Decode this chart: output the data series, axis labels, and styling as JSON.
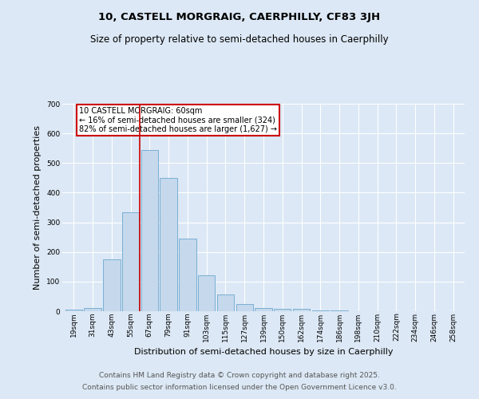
{
  "title": "10, CASTELL MORGRAIG, CAERPHILLY, CF83 3JH",
  "subtitle": "Size of property relative to semi-detached houses in Caerphilly",
  "xlabel": "Distribution of semi-detached houses by size in Caerphilly",
  "ylabel": "Number of semi-detached properties",
  "categories": [
    "19sqm",
    "31sqm",
    "43sqm",
    "55sqm",
    "67sqm",
    "79sqm",
    "91sqm",
    "103sqm",
    "115sqm",
    "127sqm",
    "139sqm",
    "150sqm",
    "162sqm",
    "174sqm",
    "186sqm",
    "198sqm",
    "210sqm",
    "222sqm",
    "234sqm",
    "246sqm",
    "258sqm"
  ],
  "values": [
    5,
    12,
    175,
    335,
    545,
    450,
    245,
    120,
    57,
    25,
    10,
    8,
    7,
    3,
    2,
    1,
    0,
    0,
    0,
    0,
    0
  ],
  "bar_color": "#c5d8ec",
  "bar_edge_color": "#7aafd4",
  "property_line_x": 3.5,
  "annotation_text": "10 CASTELL MORGRAIG: 60sqm\n← 16% of semi-detached houses are smaller (324)\n82% of semi-detached houses are larger (1,627) →",
  "annotation_box_color": "#ffffff",
  "annotation_box_edge": "#cc0000",
  "vline_color": "#cc0000",
  "ylim": [
    0,
    700
  ],
  "yticks": [
    0,
    100,
    200,
    300,
    400,
    500,
    600,
    700
  ],
  "background_color": "#dce8f5",
  "grid_color": "#ffffff",
  "footer1": "Contains HM Land Registry data © Crown copyright and database right 2025.",
  "footer2": "Contains public sector information licensed under the Open Government Licence v3.0.",
  "title_fontsize": 9.5,
  "subtitle_fontsize": 8.5,
  "axis_label_fontsize": 8,
  "tick_fontsize": 6.5,
  "footer_fontsize": 6.5,
  "annotation_fontsize": 7
}
